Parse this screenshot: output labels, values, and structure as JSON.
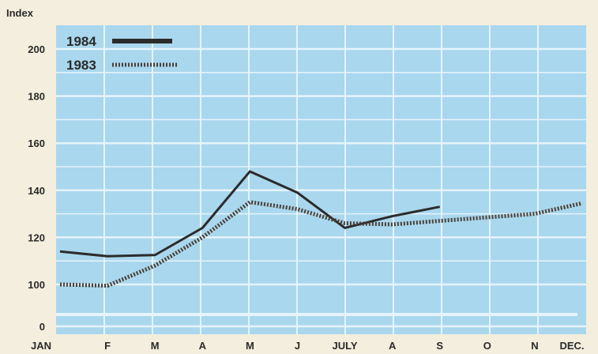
{
  "chart_data": {
    "type": "line",
    "ylabel": "Index",
    "xlabel": "",
    "categories": [
      "JAN",
      "F",
      "M",
      "A",
      "M",
      "J",
      "JULY",
      "A",
      "S",
      "O",
      "N",
      "DEC."
    ],
    "y_ticks": [
      0,
      100,
      120,
      140,
      160,
      180,
      200
    ],
    "ylim": [
      0,
      200
    ],
    "y_axis_break": "between 0 and 100",
    "grid": true,
    "legend_position": "top-left",
    "series": [
      {
        "name": "1984",
        "style": "solid",
        "color": "#2b2b2b",
        "values": [
          114,
          112,
          112.5,
          124,
          148,
          139,
          124,
          129,
          133,
          null,
          null,
          null
        ]
      },
      {
        "name": "1983",
        "style": "dotted",
        "color": "#4a3f36",
        "values": [
          100,
          97,
          108,
          120,
          135,
          132,
          126,
          125.5,
          127,
          128.5,
          130,
          134.5
        ]
      }
    ],
    "colors": {
      "plot_background": "#a9d7ee",
      "grid": "#e6f4fb",
      "page_background": "#f3eedd"
    }
  }
}
